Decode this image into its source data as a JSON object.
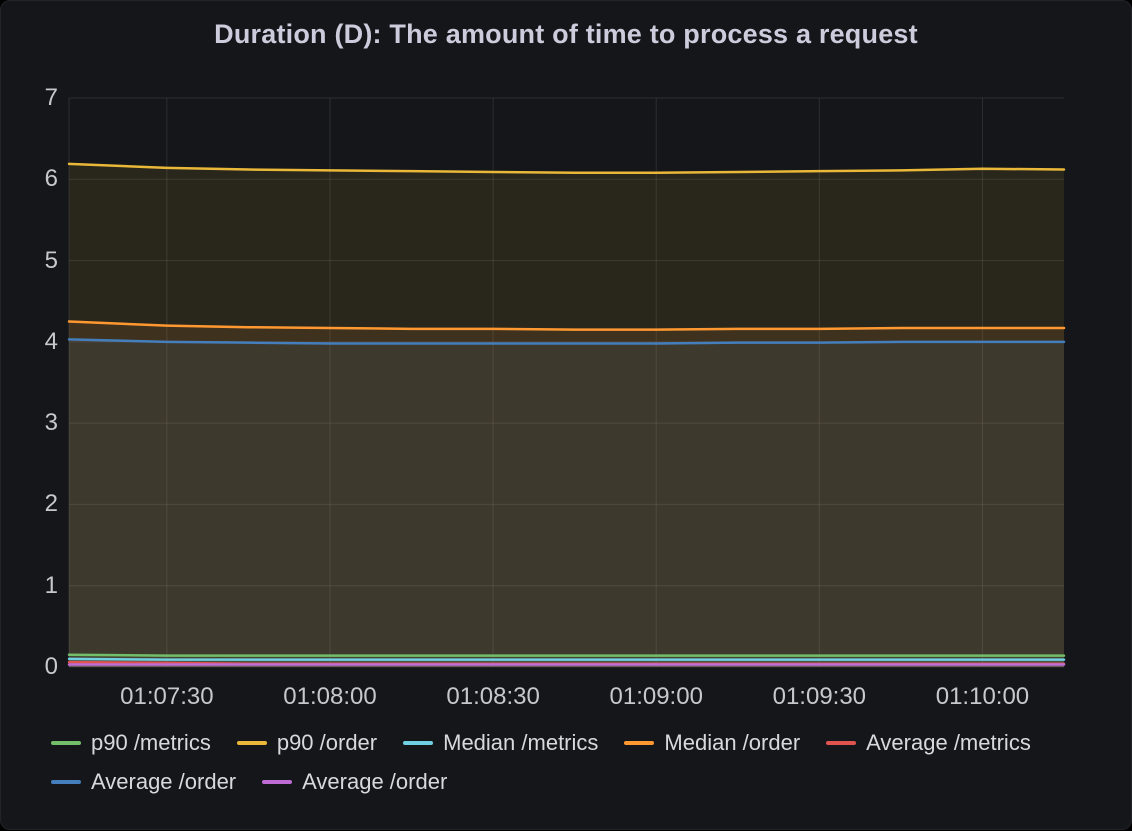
{
  "panel": {
    "title": "Duration (D): The amount of time to process a request"
  },
  "chart_data": {
    "type": "line",
    "title": "Duration (D): The amount of time to process a request",
    "xlabel": "",
    "ylabel": "",
    "ylim": [
      0,
      7
    ],
    "y_ticks": [
      0,
      1,
      2,
      3,
      4,
      5,
      6,
      7
    ],
    "x_range": [
      "01:07:12",
      "01:10:15"
    ],
    "x_ticks": [
      "01:07:30",
      "01:08:00",
      "01:08:30",
      "01:09:00",
      "01:09:30",
      "01:10:00"
    ],
    "x_times": [
      "01:07:12",
      "01:07:30",
      "01:07:45",
      "01:08:00",
      "01:08:15",
      "01:08:30",
      "01:08:45",
      "01:09:00",
      "01:09:15",
      "01:09:30",
      "01:09:45",
      "01:10:00",
      "01:10:15"
    ],
    "grid": true,
    "legend_position": "bottom",
    "fill_opacity": 0.1,
    "series": [
      {
        "name": "p90 /metrics",
        "color": "#73BF69",
        "values": [
          0.15,
          0.14,
          0.14,
          0.14,
          0.14,
          0.14,
          0.14,
          0.14,
          0.14,
          0.14,
          0.14,
          0.14,
          0.14
        ]
      },
      {
        "name": "p90 /order",
        "color": "#EAB839",
        "values": [
          6.19,
          6.14,
          6.12,
          6.11,
          6.1,
          6.09,
          6.08,
          6.08,
          6.09,
          6.1,
          6.11,
          6.13,
          6.12
        ]
      },
      {
        "name": "Median /metrics",
        "color": "#6ED0E0",
        "values": [
          0.1,
          0.09,
          0.09,
          0.09,
          0.09,
          0.09,
          0.09,
          0.09,
          0.09,
          0.09,
          0.09,
          0.09,
          0.09
        ]
      },
      {
        "name": "Median /order",
        "color": "#FF9830",
        "values": [
          4.25,
          4.2,
          4.18,
          4.17,
          4.16,
          4.16,
          4.15,
          4.15,
          4.16,
          4.16,
          4.17,
          4.17,
          4.17
        ]
      },
      {
        "name": "Average /metrics",
        "color": "#E0544F",
        "values": [
          0.06,
          0.05,
          0.04,
          0.04,
          0.04,
          0.04,
          0.04,
          0.04,
          0.04,
          0.04,
          0.04,
          0.04,
          0.04
        ]
      },
      {
        "name": "Average /order",
        "color": "#447EBC",
        "values": [
          4.03,
          4.0,
          3.99,
          3.98,
          3.98,
          3.98,
          3.98,
          3.98,
          3.99,
          3.99,
          4.0,
          4.0,
          4.0
        ]
      },
      {
        "name": "Average /order",
        "color": "#BE6BD3",
        "values": [
          0.03,
          0.03,
          0.03,
          0.03,
          0.03,
          0.03,
          0.03,
          0.03,
          0.03,
          0.03,
          0.03,
          0.03,
          0.03
        ]
      }
    ]
  }
}
